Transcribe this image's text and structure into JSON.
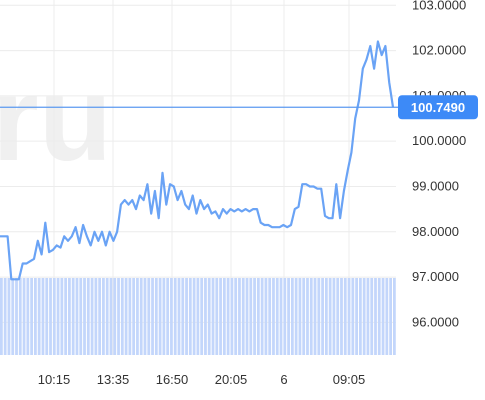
{
  "chart_data": {
    "type": "line",
    "watermark": "ru",
    "y_ticks": [
      "103.0000",
      "102.0000",
      "101.0000",
      "100.0000",
      "99.0000",
      "98.0000",
      "97.0000",
      "96.0000"
    ],
    "y_tick_values": [
      103,
      102,
      101,
      100,
      99,
      98,
      97,
      96
    ],
    "x_ticks": [
      "10:15",
      "13:35",
      "16:50",
      "20:05",
      "6",
      "09:05"
    ],
    "current_price": "100.7490",
    "current_price_value": 100.749,
    "ylim": [
      95.05,
      103.05
    ],
    "grid": true,
    "colors": {
      "line": "#6aa3f5",
      "price_line": "#5b9af0",
      "badge": "#3d8af7",
      "volume": "#c3d6fb",
      "grid": "#ececec"
    },
    "series": [
      {
        "values": [
          97.9,
          97.9,
          97.9,
          96.95,
          96.95,
          96.95,
          97.3,
          97.3,
          97.35,
          97.4,
          97.8,
          97.5,
          98.2,
          97.55,
          97.6,
          97.7,
          97.65,
          97.9,
          97.8,
          97.9,
          98.1,
          97.75,
          98.15,
          97.9,
          97.7,
          98.0,
          97.8,
          98.0,
          97.7,
          98.0,
          97.8,
          98.0,
          98.6,
          98.7,
          98.6,
          98.7,
          98.5,
          98.8,
          98.7,
          99.05,
          98.4,
          98.9,
          98.3,
          99.3,
          98.6,
          99.05,
          99.0,
          98.7,
          98.9,
          98.6,
          98.5,
          98.8,
          98.4,
          98.7,
          98.5,
          98.6,
          98.4,
          98.45,
          98.3,
          98.5,
          98.4,
          98.5,
          98.45,
          98.5,
          98.45,
          98.5,
          98.45,
          98.5,
          98.5,
          98.2,
          98.15,
          98.15,
          98.1,
          98.1,
          98.1,
          98.15,
          98.1,
          98.15,
          98.5,
          98.55,
          99.05,
          99.05,
          99.0,
          99.0,
          98.95,
          98.95,
          98.35,
          98.3,
          98.3,
          99.05,
          98.3,
          98.9,
          99.35,
          99.75,
          100.5,
          100.9,
          101.6,
          101.8,
          102.1,
          101.6,
          102.2,
          101.9,
          102.1,
          101.3,
          100.75
        ],
        "volume_values": [
          1,
          1,
          1,
          1,
          1,
          1,
          1,
          1,
          1,
          1,
          1,
          1,
          1,
          1,
          1,
          1,
          1,
          1,
          1,
          1,
          1,
          1,
          1,
          1,
          1,
          1,
          1,
          1,
          1,
          1,
          1,
          1,
          1,
          1,
          1,
          1,
          1,
          1,
          1,
          1,
          1,
          1,
          1,
          1,
          1,
          1,
          1,
          1,
          1,
          1,
          1,
          1,
          1,
          1,
          1,
          1,
          1,
          1,
          1,
          1,
          1,
          1,
          1,
          1,
          1,
          1,
          1,
          1,
          1,
          1,
          1,
          1,
          1,
          1,
          1,
          1,
          1,
          1,
          1,
          1,
          1,
          1,
          1,
          1,
          1,
          1,
          1,
          1,
          1,
          1,
          1,
          1,
          1,
          1,
          1,
          1,
          1,
          1,
          1,
          1,
          1,
          1,
          1,
          1,
          1
        ]
      }
    ]
  }
}
